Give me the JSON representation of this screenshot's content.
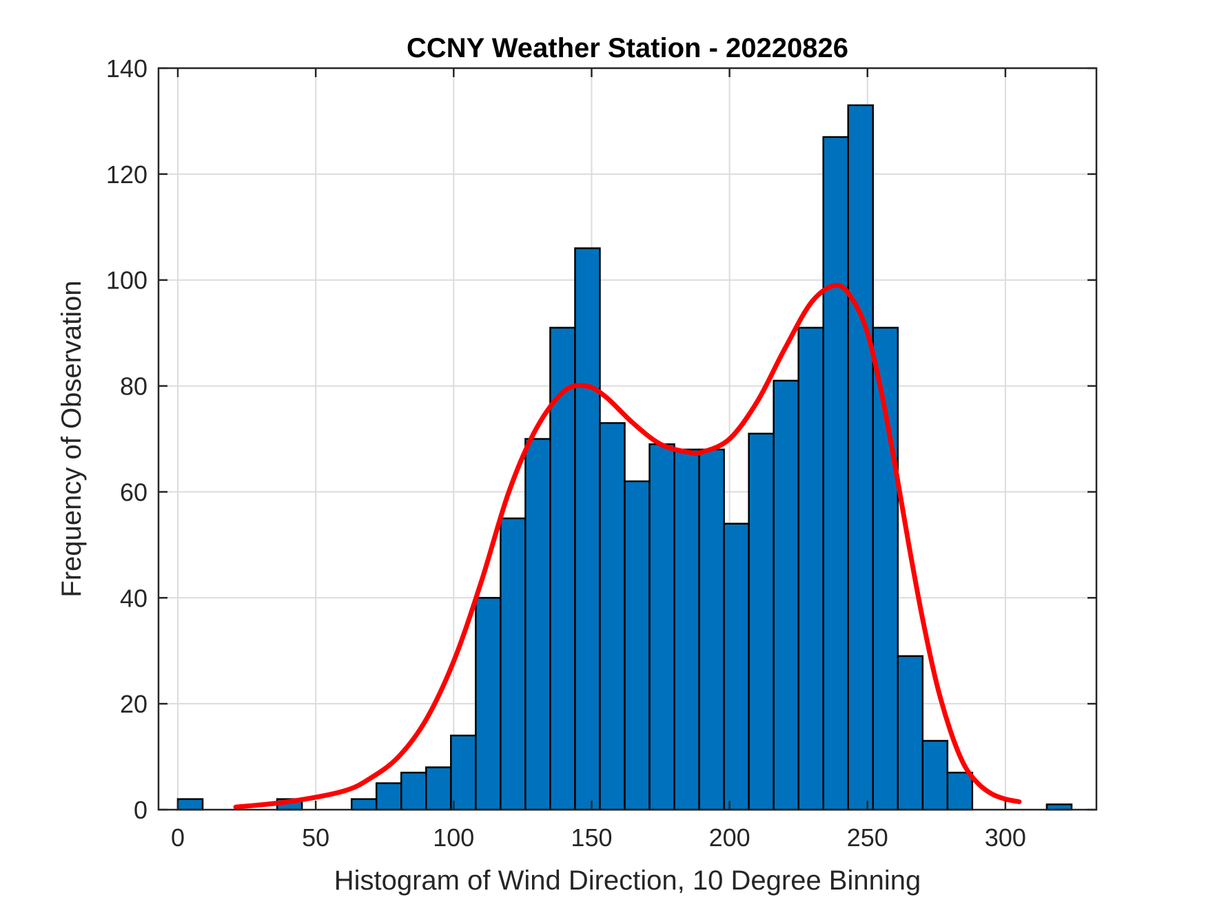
{
  "chart_data": {
    "type": "bar",
    "title": "CCNY Weather Station - 20220826",
    "xlabel": "Histogram of Wind Direction, 10 Degree Binning",
    "ylabel": "Frequency of Observation",
    "xlim": [
      -7,
      333
    ],
    "ylim": [
      0,
      140
    ],
    "x_ticks": [
      0,
      50,
      100,
      150,
      200,
      250,
      300
    ],
    "y_ticks": [
      0,
      20,
      40,
      60,
      80,
      100,
      120,
      140
    ],
    "grid": true,
    "bin_width": 9,
    "bar_color": "#0072BD",
    "bar_edge_color": "#000000",
    "bins": [
      {
        "start": 0,
        "value": 2
      },
      {
        "start": 36,
        "value": 2
      },
      {
        "start": 63,
        "value": 2
      },
      {
        "start": 72,
        "value": 5
      },
      {
        "start": 81,
        "value": 7
      },
      {
        "start": 90,
        "value": 8
      },
      {
        "start": 99,
        "value": 14
      },
      {
        "start": 108,
        "value": 40
      },
      {
        "start": 117,
        "value": 55
      },
      {
        "start": 126,
        "value": 70
      },
      {
        "start": 135,
        "value": 91
      },
      {
        "start": 144,
        "value": 106
      },
      {
        "start": 153,
        "value": 73
      },
      {
        "start": 162,
        "value": 62
      },
      {
        "start": 171,
        "value": 69
      },
      {
        "start": 180,
        "value": 68
      },
      {
        "start": 189,
        "value": 68
      },
      {
        "start": 198,
        "value": 54
      },
      {
        "start": 207,
        "value": 71
      },
      {
        "start": 216,
        "value": 81
      },
      {
        "start": 225,
        "value": 91
      },
      {
        "start": 234,
        "value": 127
      },
      {
        "start": 243,
        "value": 133
      },
      {
        "start": 252,
        "value": 91
      },
      {
        "start": 261,
        "value": 29
      },
      {
        "start": 270,
        "value": 13
      },
      {
        "start": 279,
        "value": 7
      },
      {
        "start": 315,
        "value": 1
      }
    ],
    "fit_curve": {
      "name": "fit",
      "color": "#FF0000",
      "x": [
        21,
        40,
        60,
        70,
        80,
        90,
        100,
        110,
        120,
        130,
        140,
        148,
        155,
        165,
        175,
        185,
        190,
        200,
        210,
        220,
        230,
        239,
        245,
        250,
        255,
        260,
        265,
        270,
        275,
        280,
        285,
        290,
        295,
        300,
        305
      ],
      "y": [
        0.5,
        1.5,
        3.5,
        6,
        10,
        17,
        28,
        43,
        60,
        72,
        79,
        80,
        78,
        73,
        69,
        67.5,
        67.5,
        70,
        77,
        87,
        96,
        99,
        96,
        90,
        79,
        65,
        50,
        36,
        24,
        15,
        8.5,
        5,
        3,
        2,
        1.5
      ]
    }
  }
}
